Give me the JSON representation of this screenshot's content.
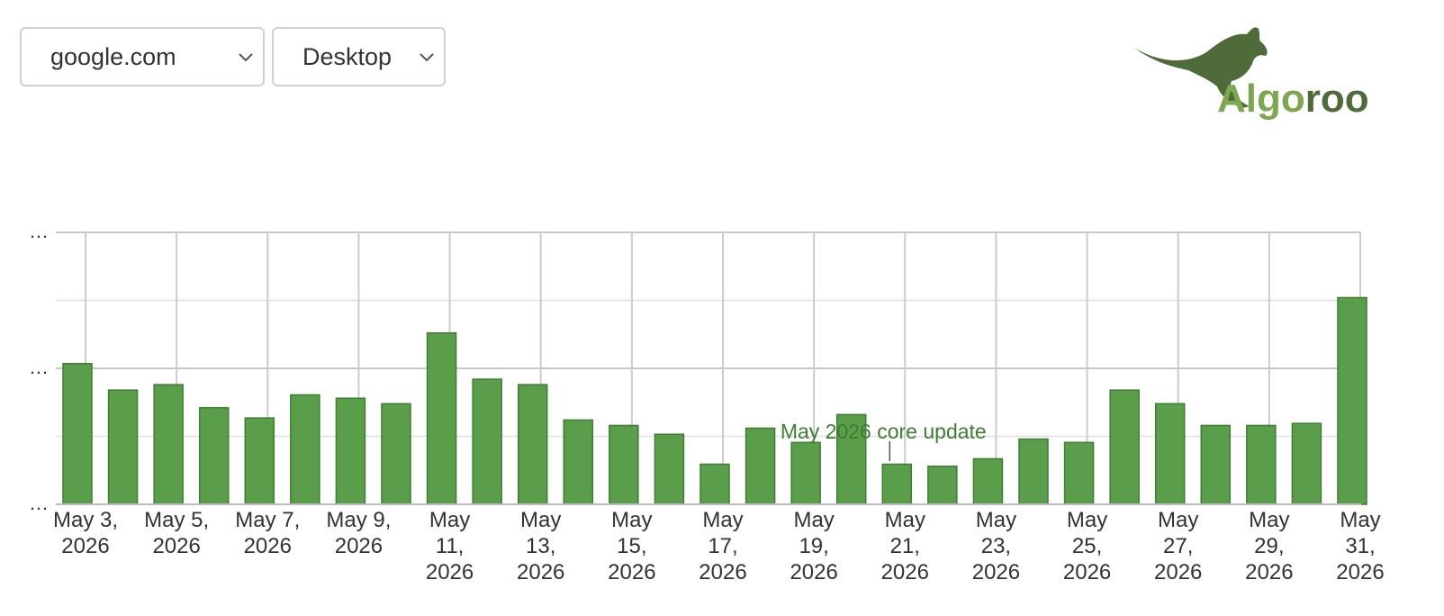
{
  "controls": {
    "domain_select": {
      "value": "google.com"
    },
    "device_select": {
      "value": "Desktop"
    }
  },
  "logo": {
    "text": "Algoroo"
  },
  "colors": {
    "bar_fill": "#5a9e4b",
    "bar_stroke": "#3f7d33",
    "annotation_text": "#3f7d33",
    "logo_dark": "#4f6b3a",
    "logo_light": "#7fa650",
    "grid": "#cccccc"
  },
  "chart_data": {
    "type": "bar",
    "title": "",
    "xlabel": "",
    "ylabel": "",
    "y_tick_labels": [
      "…",
      "…",
      "…"
    ],
    "x_tick_labels": [
      [
        "May 3,",
        "2026"
      ],
      [
        "May 5,",
        "2026"
      ],
      [
        "May 7,",
        "2026"
      ],
      [
        "May 9,",
        "2026"
      ],
      [
        "May",
        "11,",
        "2026"
      ],
      [
        "May",
        "13,",
        "2026"
      ],
      [
        "May",
        "15,",
        "2026"
      ],
      [
        "May",
        "17,",
        "2026"
      ],
      [
        "May",
        "19,",
        "2026"
      ],
      [
        "May",
        "21,",
        "2026"
      ],
      [
        "May",
        "23,",
        "2026"
      ],
      [
        "May",
        "25,",
        "2026"
      ],
      [
        "May",
        "27,",
        "2026"
      ],
      [
        "May",
        "29,",
        "2026"
      ],
      [
        "May",
        "31,",
        "2026"
      ]
    ],
    "categories": [
      "2026-05-03",
      "2026-05-04",
      "2026-05-05",
      "2026-05-06",
      "2026-05-07",
      "2026-05-08",
      "2026-05-09",
      "2026-05-10",
      "2026-05-11",
      "2026-05-12",
      "2026-05-13",
      "2026-05-14",
      "2026-05-15",
      "2026-05-16",
      "2026-05-17",
      "2026-05-18",
      "2026-05-19",
      "2026-05-20",
      "2026-05-21",
      "2026-05-22",
      "2026-05-23",
      "2026-05-24",
      "2026-05-25",
      "2026-05-26",
      "2026-05-27",
      "2026-05-28",
      "2026-05-29",
      "2026-05-30",
      "2026-05-31"
    ],
    "values": [
      2.07,
      1.68,
      1.76,
      1.42,
      1.27,
      1.61,
      1.56,
      1.48,
      2.52,
      1.84,
      1.76,
      1.24,
      1.16,
      1.03,
      0.59,
      1.12,
      0.91,
      1.32,
      0.59,
      0.56,
      0.67,
      0.96,
      0.91,
      1.68,
      1.48,
      1.16,
      1.16,
      1.19,
      3.04
    ],
    "ylim": [
      0,
      4
    ],
    "grid": true,
    "annotations": [
      {
        "x": "2026-05-21",
        "text": "May 2026 core update"
      }
    ]
  }
}
